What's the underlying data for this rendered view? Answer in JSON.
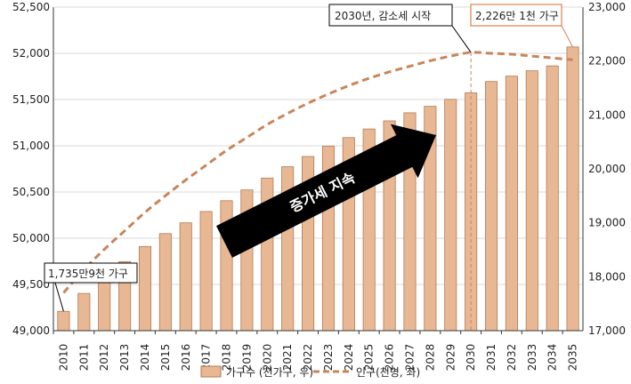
{
  "chart_data": {
    "type": "bar",
    "categories": [
      "2010",
      "2011",
      "2012",
      "2013",
      "2014",
      "2015",
      "2016",
      "2017",
      "2018",
      "2019",
      "2020",
      "2021",
      "2022",
      "2023",
      "2024",
      "2025",
      "2026",
      "2027",
      "2028",
      "2029",
      "2030",
      "2031",
      "2032",
      "2033",
      "2034",
      "2035"
    ],
    "series": [
      {
        "name": "가구수 (천가구, 우)",
        "type": "bar",
        "axis": "right",
        "color": "#e8b894",
        "values": [
          17359,
          17690,
          17990,
          18280,
          18560,
          18800,
          19000,
          19210,
          19410,
          19610,
          19830,
          20040,
          20230,
          20420,
          20580,
          20740,
          20890,
          21040,
          21160,
          21290,
          21410,
          21620,
          21720,
          21820,
          21910,
          22261
        ]
      },
      {
        "name": "인구(천명, 좌)",
        "type": "line",
        "axis": "left",
        "color": "#c8855a",
        "values": [
          49410,
          49660,
          49880,
          50080,
          50280,
          50460,
          50630,
          50790,
          50950,
          51090,
          51230,
          51350,
          51460,
          51560,
          51650,
          51730,
          51800,
          51860,
          51920,
          51970,
          52010,
          52000,
          51990,
          51970,
          51950,
          51930
        ]
      }
    ],
    "y_left": {
      "ylim": [
        49000,
        52500
      ],
      "ticks": [
        "49,000",
        "49,500",
        "50,000",
        "50,500",
        "51,000",
        "51,500",
        "52,000",
        "52,500"
      ],
      "tick_values": [
        49000,
        49500,
        50000,
        50500,
        51000,
        51500,
        52000,
        52500
      ]
    },
    "y_right": {
      "ylim": [
        17000,
        23000
      ],
      "ticks": [
        "17,000",
        "18,000",
        "19,000",
        "20,000",
        "21,000",
        "22,000",
        "23,000"
      ],
      "tick_values": [
        17000,
        18000,
        19000,
        20000,
        21000,
        22000,
        23000
      ]
    },
    "legend_position": "bottom",
    "annotations": {
      "start": "1,735만9천 가구",
      "peak": "2030년, 감소세 시작",
      "end": "2,226만 1천 가구",
      "arrow": "증가세 지속"
    }
  },
  "colors": {
    "bar_fill": "#e8b894",
    "bar_stroke": "#b27a52",
    "line": "#c8855a",
    "end_box": "#d8834a",
    "arrow": "#000000"
  }
}
